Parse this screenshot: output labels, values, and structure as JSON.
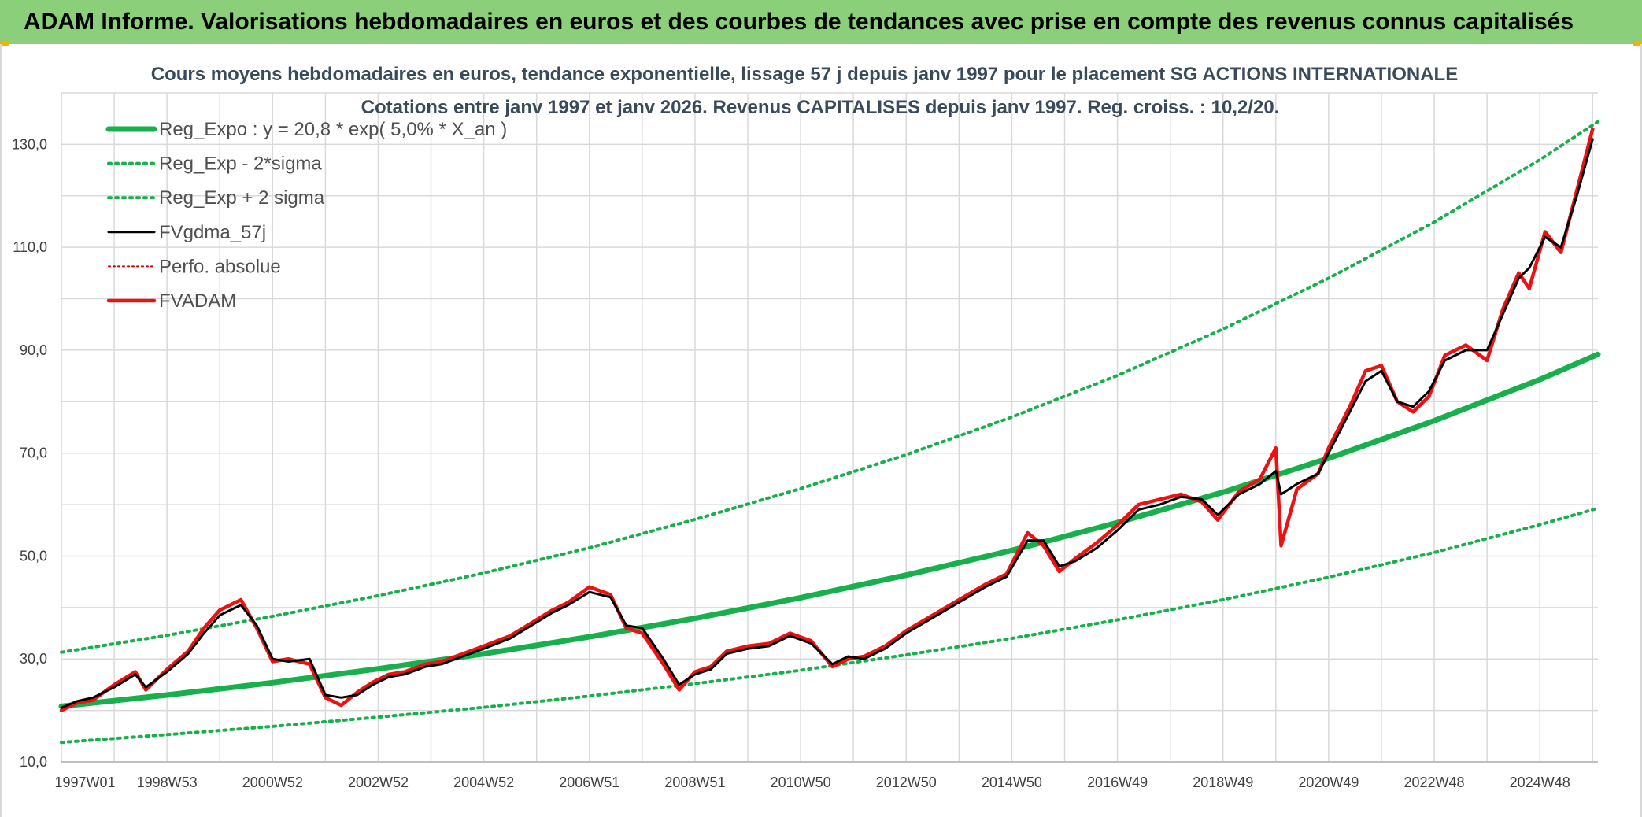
{
  "header": {
    "banner": "ADAM Informe. Valorisations hebdomadaires en euros et des courbes de tendances avec prise en compte des revenus connus capitalisés"
  },
  "colors": {
    "banner_bg": "#8bcf7a",
    "reg_green": "#17b04d",
    "fv_black": "#000000",
    "fvadam_red": "#ee1111",
    "perfo_red": "#cc0000",
    "grid": "#d9d9d9"
  },
  "chart_data": {
    "type": "line",
    "title": "Cours moyens hebdomadaires en euros, tendance exponentielle, lissage 57 j depuis janv 1997 pour le placement SG ACTIONS INTERNATIONALE",
    "subtitle": "Cotations entre janv 1997 et janv 2026. Revenus CAPITALISES depuis janv 1997. Reg. croiss. : 10,2/20.",
    "xlabel": "",
    "ylabel": "",
    "xlim": [
      1997.0,
      2026.1
    ],
    "ylim": [
      10,
      140
    ],
    "y_ticks": [
      10,
      30,
      50,
      70,
      90,
      110,
      130
    ],
    "y_tick_labels": [
      "10,0",
      "30,0",
      "50,0",
      "70,0",
      "90,0",
      "110,0",
      "130,0"
    ],
    "x_ticks": [
      1997.0,
      1999.0,
      2001.0,
      2003.0,
      2005.0,
      2007.0,
      2009.0,
      2011.0,
      2013.0,
      2015.0,
      2017.0,
      2019.0,
      2021.0,
      2023.0,
      2025.0
    ],
    "x_tick_labels": [
      "1997W01",
      "1998W53",
      "2000W52",
      "2002W52",
      "2004W52",
      "2006W51",
      "2008W51",
      "2010W50",
      "2012W50",
      "2014W50",
      "2016W49",
      "2018W49",
      "2020W49",
      "2022W48",
      "2024W48"
    ],
    "grid": true,
    "legend_position": "top-left",
    "legend": [
      {
        "name": "Reg_Expo : y = 20,8 * exp( 5,0% *  X_an )",
        "style": "thick-green"
      },
      {
        "name": "Reg_Exp - 2*sigma",
        "style": "dotted-green"
      },
      {
        "name": "Reg_Exp + 2 sigma",
        "style": "dotted-green"
      },
      {
        "name": "FVgdma_57j",
        "style": "black"
      },
      {
        "name": "Perfo. absolue",
        "style": "dotted-red"
      },
      {
        "name": "FVADAM",
        "style": "thick-red"
      }
    ],
    "series": [
      {
        "name": "Reg_Expo : y = 20,8 * exp( 5,0% *  X_an )",
        "x": [
          1997.0,
          1999.0,
          2001.0,
          2003.0,
          2005.0,
          2007.0,
          2009.0,
          2011.0,
          2013.0,
          2015.0,
          2017.0,
          2019.0,
          2021.0,
          2023.0,
          2025.0,
          2026.1
        ],
        "values": [
          20.8,
          23.0,
          25.4,
          28.1,
          31.0,
          34.3,
          37.9,
          41.9,
          46.3,
          51.1,
          56.5,
          62.4,
          69.0,
          76.3,
          84.3,
          89.2
        ]
      },
      {
        "name": "Reg_Exp - 2*sigma",
        "x": [
          1997.0,
          1999.0,
          2001.0,
          2003.0,
          2005.0,
          2007.0,
          2009.0,
          2011.0,
          2013.0,
          2015.0,
          2017.0,
          2019.0,
          2021.0,
          2023.0,
          2025.0,
          2026.1
        ],
        "values": [
          13.8,
          15.3,
          16.9,
          18.7,
          20.6,
          22.8,
          25.2,
          27.8,
          30.8,
          34.0,
          37.6,
          41.5,
          45.9,
          50.7,
          56.1,
          59.3
        ]
      },
      {
        "name": "Reg_Exp + 2 sigma",
        "x": [
          1997.0,
          1999.0,
          2001.0,
          2003.0,
          2005.0,
          2007.0,
          2009.0,
          2011.0,
          2013.0,
          2015.0,
          2017.0,
          2019.0,
          2021.0,
          2023.0,
          2025.0,
          2026.1
        ],
        "values": [
          31.3,
          34.6,
          38.3,
          42.3,
          46.7,
          51.6,
          57.1,
          63.1,
          69.7,
          77.0,
          85.1,
          94.1,
          104.0,
          114.9,
          127.0,
          134.4
        ]
      },
      {
        "name": "FVgdma_57j",
        "x": [
          1997.0,
          1997.3,
          1997.6,
          1998.0,
          1998.4,
          1998.6,
          1999.0,
          1999.4,
          1999.7,
          2000.0,
          2000.4,
          2000.7,
          2001.0,
          2001.3,
          2001.7,
          2002.0,
          2002.3,
          2002.6,
          2002.9,
          2003.2,
          2003.5,
          2003.9,
          2004.2,
          2004.6,
          2005.0,
          2005.5,
          2005.9,
          2006.3,
          2006.6,
          2007.0,
          2007.4,
          2007.7,
          2008.0,
          2008.4,
          2008.7,
          2009.0,
          2009.3,
          2009.6,
          2010.0,
          2010.4,
          2010.8,
          2011.2,
          2011.6,
          2011.9,
          2012.2,
          2012.6,
          2013.0,
          2013.5,
          2014.0,
          2014.5,
          2014.9,
          2015.3,
          2015.6,
          2015.9,
          2016.2,
          2016.6,
          2017.0,
          2017.4,
          2017.8,
          2018.2,
          2018.6,
          2018.9,
          2019.3,
          2019.7,
          2020.0,
          2020.1,
          2020.4,
          2020.8,
          2021.0,
          2021.4,
          2021.7,
          2022.0,
          2022.3,
          2022.6,
          2022.9,
          2023.2,
          2023.6,
          2024.0,
          2024.3,
          2024.6,
          2024.8,
          2025.1,
          2025.4,
          2025.7,
          2026.0
        ],
        "values": [
          20.5,
          21.8,
          22.5,
          24.5,
          27.0,
          24.5,
          27.5,
          31.0,
          35.0,
          38.5,
          40.5,
          36.5,
          30.0,
          29.5,
          30.0,
          23.0,
          22.5,
          23.0,
          25.0,
          26.5,
          27.0,
          28.5,
          29.0,
          30.5,
          32.0,
          34.0,
          36.5,
          39.0,
          40.5,
          43.0,
          42.0,
          36.5,
          36.0,
          30.0,
          25.0,
          27.0,
          28.0,
          31.0,
          32.0,
          32.5,
          34.5,
          33.0,
          29.0,
          30.5,
          30.0,
          32.0,
          35.0,
          38.0,
          41.0,
          44.0,
          46.0,
          53.0,
          53.0,
          48.0,
          49.0,
          51.5,
          55.0,
          59.0,
          60.0,
          61.5,
          61.0,
          58.0,
          62.0,
          64.0,
          66.5,
          62.0,
          64.0,
          66.0,
          70.0,
          78.0,
          84.0,
          86.0,
          80.0,
          79.0,
          82.0,
          88.0,
          90.0,
          90.0,
          97.0,
          104.0,
          106.0,
          112.0,
          110.0,
          120.0,
          131.0
        ]
      },
      {
        "name": "Perfo. absolue",
        "x": [
          1997.0,
          1997.3,
          1997.6,
          1998.0,
          1998.4,
          1998.6,
          1999.0,
          1999.4,
          1999.7,
          2000.0,
          2000.4,
          2000.7,
          2001.0,
          2001.3,
          2001.7,
          2002.0,
          2002.3,
          2002.6,
          2002.9,
          2003.2,
          2003.5,
          2003.9,
          2004.2,
          2004.6,
          2005.0,
          2005.5,
          2005.9,
          2006.3,
          2006.6,
          2007.0,
          2007.4,
          2007.7,
          2008.0,
          2008.4,
          2008.7,
          2009.0,
          2009.3,
          2009.6,
          2010.0,
          2010.4,
          2010.8,
          2011.2,
          2011.6,
          2011.9,
          2012.2,
          2012.6,
          2013.0,
          2013.5,
          2014.0,
          2014.5,
          2014.9,
          2015.3,
          2015.6,
          2015.9,
          2016.2,
          2016.6,
          2017.0,
          2017.4,
          2017.8,
          2018.2,
          2018.6,
          2018.9,
          2019.3,
          2019.7,
          2020.0,
          2020.1,
          2020.4,
          2020.8,
          2021.0,
          2021.4,
          2021.7,
          2022.0,
          2022.3,
          2022.6,
          2022.9,
          2023.2,
          2023.6,
          2024.0,
          2024.3,
          2024.6,
          2024.8,
          2025.1,
          2025.4,
          2025.7,
          2026.0
        ],
        "values": [
          20.0,
          21.5,
          22.0,
          25.0,
          27.5,
          24.0,
          28.0,
          31.5,
          36.0,
          39.5,
          41.5,
          36.0,
          29.5,
          30.0,
          29.0,
          22.5,
          21.0,
          23.5,
          25.5,
          27.0,
          27.5,
          29.0,
          29.5,
          31.0,
          32.5,
          34.5,
          37.0,
          39.5,
          41.0,
          44.0,
          42.5,
          36.0,
          35.0,
          29.0,
          24.0,
          27.5,
          28.5,
          31.5,
          32.5,
          33.0,
          35.0,
          33.5,
          28.5,
          30.0,
          30.5,
          32.5,
          35.5,
          38.5,
          41.5,
          44.5,
          46.5,
          54.5,
          52.0,
          47.0,
          49.5,
          52.5,
          56.0,
          60.0,
          61.0,
          62.0,
          60.5,
          57.0,
          62.5,
          65.0,
          71.0,
          52.0,
          63.0,
          66.0,
          71.0,
          79.0,
          86.0,
          87.0,
          80.0,
          78.0,
          81.0,
          89.0,
          91.0,
          88.0,
          98.0,
          105.0,
          102.0,
          113.0,
          109.0,
          121.0,
          133.0
        ]
      },
      {
        "name": "FVADAM",
        "x": [
          1997.0,
          1997.3,
          1997.6,
          1998.0,
          1998.4,
          1998.6,
          1999.0,
          1999.4,
          1999.7,
          2000.0,
          2000.4,
          2000.7,
          2001.0,
          2001.3,
          2001.7,
          2002.0,
          2002.3,
          2002.6,
          2002.9,
          2003.2,
          2003.5,
          2003.9,
          2004.2,
          2004.6,
          2005.0,
          2005.5,
          2005.9,
          2006.3,
          2006.6,
          2007.0,
          2007.4,
          2007.7,
          2008.0,
          2008.4,
          2008.7,
          2009.0,
          2009.3,
          2009.6,
          2010.0,
          2010.4,
          2010.8,
          2011.2,
          2011.6,
          2011.9,
          2012.2,
          2012.6,
          2013.0,
          2013.5,
          2014.0,
          2014.5,
          2014.9,
          2015.3,
          2015.6,
          2015.9,
          2016.2,
          2016.6,
          2017.0,
          2017.4,
          2017.8,
          2018.2,
          2018.6,
          2018.9,
          2019.3,
          2019.7,
          2020.0,
          2020.1,
          2020.4,
          2020.8,
          2021.0,
          2021.4,
          2021.7,
          2022.0,
          2022.3,
          2022.6,
          2022.9,
          2023.2,
          2023.6,
          2024.0,
          2024.3,
          2024.6,
          2024.8,
          2025.1,
          2025.4,
          2025.7,
          2026.0
        ],
        "values": [
          20.0,
          21.5,
          22.0,
          25.0,
          27.5,
          24.0,
          28.0,
          31.5,
          36.0,
          39.5,
          41.5,
          36.0,
          29.5,
          30.0,
          29.0,
          22.5,
          21.0,
          23.5,
          25.5,
          27.0,
          27.5,
          29.0,
          29.5,
          31.0,
          32.5,
          34.5,
          37.0,
          39.5,
          41.0,
          44.0,
          42.5,
          36.0,
          35.0,
          29.0,
          24.0,
          27.5,
          28.5,
          31.5,
          32.5,
          33.0,
          35.0,
          33.5,
          28.5,
          30.0,
          30.5,
          32.5,
          35.5,
          38.5,
          41.5,
          44.5,
          46.5,
          54.5,
          52.0,
          47.0,
          49.5,
          52.5,
          56.0,
          60.0,
          61.0,
          62.0,
          60.5,
          57.0,
          62.5,
          65.0,
          71.0,
          52.0,
          63.0,
          66.0,
          71.0,
          79.0,
          86.0,
          87.0,
          80.0,
          78.0,
          81.0,
          89.0,
          91.0,
          88.0,
          98.0,
          105.0,
          102.0,
          113.0,
          109.0,
          121.0,
          133.0
        ]
      }
    ]
  }
}
